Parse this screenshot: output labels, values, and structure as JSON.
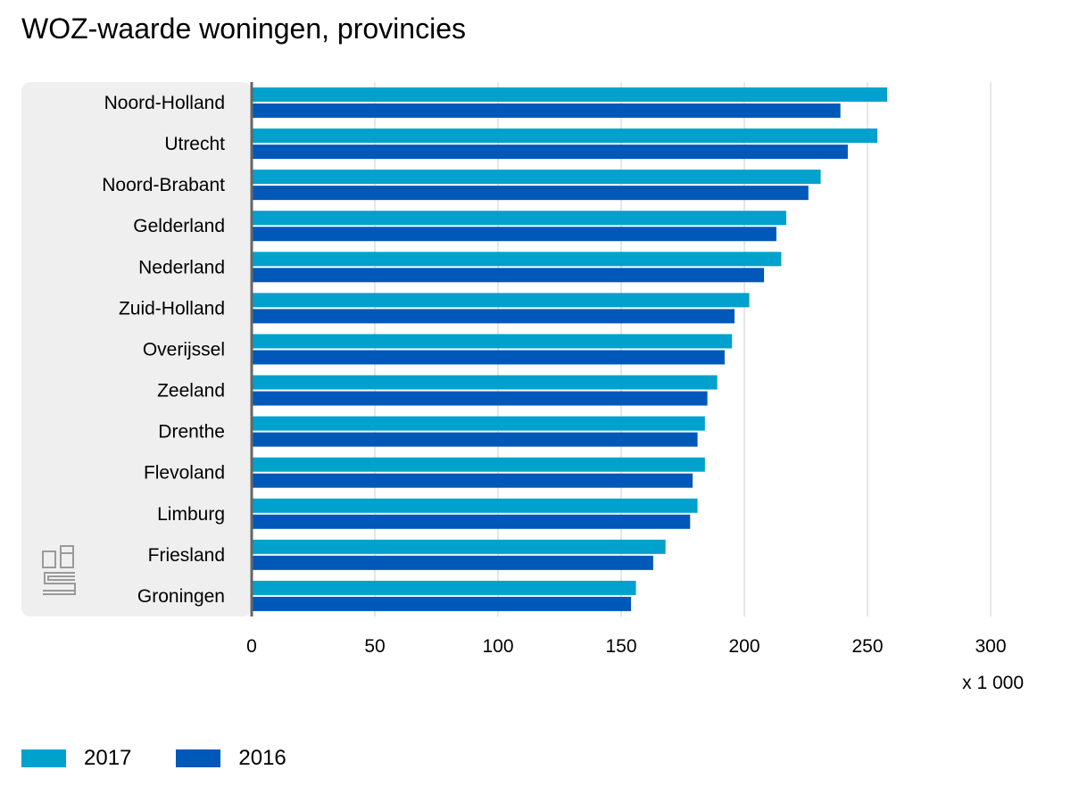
{
  "chart_data": {
    "type": "bar",
    "orientation": "horizontal",
    "title": "WOZ-waarde woningen, provincies",
    "unit_label": "x 1 000",
    "categories": [
      "Noord-Holland",
      "Utrecht",
      "Noord-Brabant",
      "Gelderland",
      "Nederland",
      "Zuid-Holland",
      "Overijssel",
      "Zeeland",
      "Drenthe",
      "Flevoland",
      "Limburg",
      "Friesland",
      "Groningen"
    ],
    "series": [
      {
        "name": "2017",
        "color": "#00a1cd",
        "values": [
          258,
          254,
          231,
          217,
          215,
          202,
          195,
          189,
          184,
          184,
          181,
          168,
          156
        ]
      },
      {
        "name": "2016",
        "color": "#0058b8",
        "values": [
          239,
          242,
          226,
          213,
          208,
          196,
          192,
          185,
          181,
          179,
          178,
          163,
          154
        ]
      }
    ],
    "xlim": [
      0,
      300
    ],
    "ticks": [
      0,
      50,
      100,
      150,
      200,
      250,
      300
    ],
    "grid": true,
    "legend_position": "bottom-left"
  },
  "logo": {
    "name": "cbs-logo",
    "text": "cbs"
  }
}
